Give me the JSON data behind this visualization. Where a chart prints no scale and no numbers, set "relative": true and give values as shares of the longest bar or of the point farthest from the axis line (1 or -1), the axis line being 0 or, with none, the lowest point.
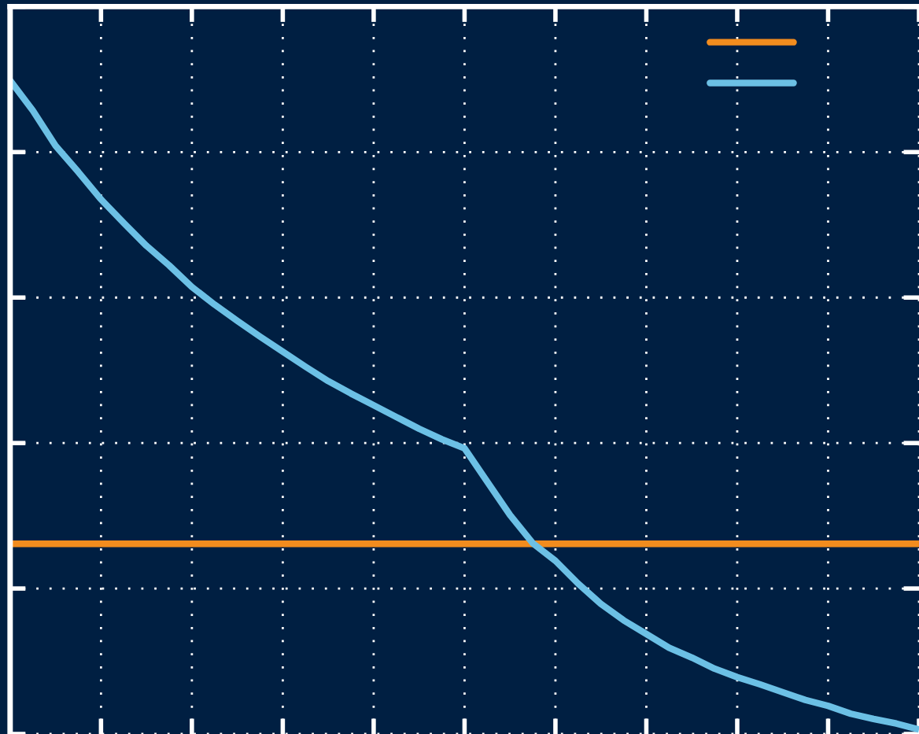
{
  "chart_data": {
    "type": "line",
    "relative": true,
    "grid": true,
    "marker": "none",
    "line_style": "solid",
    "categories": [
      null,
      null,
      null,
      null,
      null,
      null,
      null,
      null,
      null,
      null,
      null,
      null,
      null,
      null,
      null,
      null,
      null,
      null,
      null,
      null,
      null,
      null,
      null,
      null,
      null,
      null,
      null,
      null,
      null,
      null,
      null,
      null,
      null,
      null,
      null,
      null,
      null,
      null,
      null,
      null,
      null
    ],
    "series": [
      {
        "color": "#f28c1e",
        "values": [
          0.291,
          0.291,
          0.291,
          0.291,
          0.291,
          0.291,
          0.291,
          0.291,
          0.291,
          0.291,
          0.291,
          0.291,
          0.291,
          0.291,
          0.291,
          0.291,
          0.291,
          0.291,
          0.291,
          0.291,
          0.291,
          0.291,
          0.291,
          0.291,
          0.291,
          0.291,
          0.291,
          0.291,
          0.291,
          0.291,
          0.291,
          0.291,
          0.291,
          0.291,
          0.291,
          0.291,
          0.291,
          0.291,
          0.291,
          0.291,
          0.291
        ]
      },
      {
        "color": "#6cc0e5",
        "values": [
          1.0,
          0.954,
          0.9,
          0.86,
          0.818,
          0.782,
          0.747,
          0.717,
          0.684,
          0.657,
          0.632,
          0.608,
          0.585,
          0.562,
          0.54,
          0.521,
          0.503,
          0.485,
          0.467,
          0.451,
          0.437,
          0.386,
          0.335,
          0.292,
          0.265,
          0.23,
          0.199,
          0.174,
          0.153,
          0.132,
          0.117,
          0.1,
          0.087,
          0.076,
          0.064,
          0.052,
          0.043,
          0.031,
          0.023,
          0.016,
          0.007
        ]
      }
    ]
  }
}
